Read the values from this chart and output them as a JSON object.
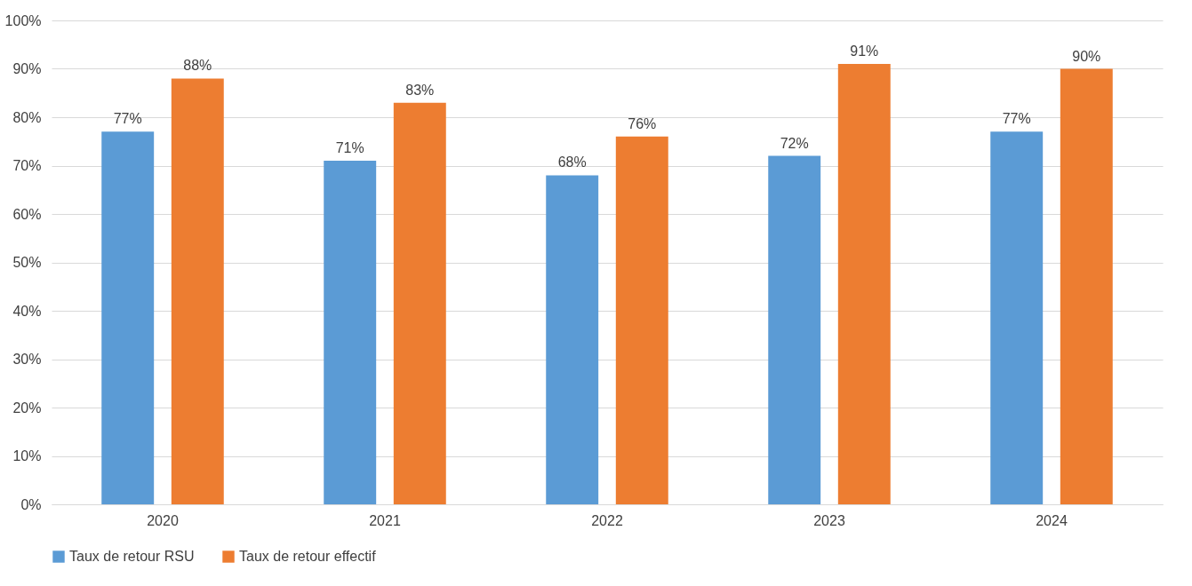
{
  "chart_data": {
    "type": "bar",
    "categories": [
      "2020",
      "2021",
      "2022",
      "2023",
      "2024"
    ],
    "series": [
      {
        "name": "Taux de retour RSU",
        "color": "#5b9bd5",
        "values": [
          77,
          71,
          68,
          72,
          77
        ],
        "value_labels": [
          "77%",
          "71%",
          "68%",
          "72%",
          "77%"
        ]
      },
      {
        "name": "Taux de retour effectif",
        "color": "#ed7d31",
        "values": [
          88,
          83,
          76,
          91,
          90
        ],
        "value_labels": [
          "88%",
          "83%",
          "76%",
          "91%",
          "90%"
        ]
      }
    ],
    "ylim": [
      0,
      100
    ],
    "yticks": [
      {
        "value": 0,
        "label": "0%"
      },
      {
        "value": 10,
        "label": "10%"
      },
      {
        "value": 20,
        "label": "20%"
      },
      {
        "value": 30,
        "label": "30%"
      },
      {
        "value": 40,
        "label": "40%"
      },
      {
        "value": 50,
        "label": "50%"
      },
      {
        "value": 60,
        "label": "60%"
      },
      {
        "value": 70,
        "label": "70%"
      },
      {
        "value": 80,
        "label": "80%"
      },
      {
        "value": 90,
        "label": "90%"
      },
      {
        "value": 100,
        "label": "100%"
      }
    ],
    "grid": "y",
    "legend": "bottom"
  }
}
